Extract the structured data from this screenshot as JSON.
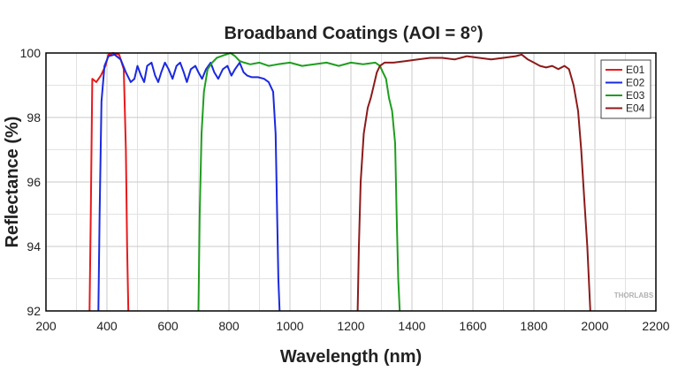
{
  "chart_data": {
    "type": "line",
    "title": "Broadband Coatings (AOI = 8°)",
    "xlabel": "Wavelength (nm)",
    "ylabel": "Reflectance (%)",
    "xlim": [
      200,
      2200
    ],
    "ylim": [
      92,
      100
    ],
    "xticks": [
      200,
      400,
      600,
      800,
      1000,
      1200,
      1400,
      1600,
      1800,
      2000,
      2200
    ],
    "yticks": [
      92,
      94,
      96,
      98,
      100
    ],
    "grid": true,
    "legend_position": "top-right",
    "watermark": "THORLABS",
    "series": [
      {
        "name": "E01",
        "color": "#e8191b",
        "points": [
          [
            343,
            92
          ],
          [
            347,
            95
          ],
          [
            352,
            99.2
          ],
          [
            365,
            99.1
          ],
          [
            380,
            99.3
          ],
          [
            395,
            99.6
          ],
          [
            405,
            99.95
          ],
          [
            420,
            100
          ],
          [
            440,
            99.95
          ],
          [
            455,
            99.5
          ],
          [
            462,
            97
          ],
          [
            466,
            94
          ],
          [
            470,
            92
          ]
        ]
      },
      {
        "name": "E02",
        "color": "#1a29e0",
        "points": [
          [
            372,
            92
          ],
          [
            376,
            95
          ],
          [
            382,
            98.5
          ],
          [
            392,
            99.6
          ],
          [
            405,
            99.9
          ],
          [
            425,
            99.95
          ],
          [
            445,
            99.8
          ],
          [
            462,
            99.4
          ],
          [
            478,
            99.1
          ],
          [
            490,
            99.2
          ],
          [
            500,
            99.6
          ],
          [
            512,
            99.3
          ],
          [
            522,
            99.1
          ],
          [
            532,
            99.6
          ],
          [
            546,
            99.7
          ],
          [
            558,
            99.3
          ],
          [
            568,
            99.1
          ],
          [
            578,
            99.4
          ],
          [
            590,
            99.7
          ],
          [
            602,
            99.5
          ],
          [
            615,
            99.2
          ],
          [
            628,
            99.6
          ],
          [
            640,
            99.7
          ],
          [
            652,
            99.4
          ],
          [
            662,
            99.1
          ],
          [
            675,
            99.5
          ],
          [
            690,
            99.6
          ],
          [
            700,
            99.4
          ],
          [
            712,
            99.2
          ],
          [
            725,
            99.5
          ],
          [
            740,
            99.7
          ],
          [
            752,
            99.4
          ],
          [
            765,
            99.2
          ],
          [
            780,
            99.5
          ],
          [
            795,
            99.6
          ],
          [
            808,
            99.3
          ],
          [
            820,
            99.5
          ],
          [
            835,
            99.7
          ],
          [
            848,
            99.4
          ],
          [
            860,
            99.3
          ],
          [
            875,
            99.25
          ],
          [
            895,
            99.25
          ],
          [
            915,
            99.2
          ],
          [
            930,
            99.1
          ],
          [
            945,
            98.8
          ],
          [
            953,
            97.5
          ],
          [
            958,
            95
          ],
          [
            962,
            93
          ],
          [
            966,
            92
          ]
        ]
      },
      {
        "name": "E03",
        "color": "#1e9e1e",
        "points": [
          [
            700,
            92
          ],
          [
            704,
            95
          ],
          [
            710,
            97.5
          ],
          [
            718,
            98.8
          ],
          [
            730,
            99.5
          ],
          [
            745,
            99.7
          ],
          [
            760,
            99.85
          ],
          [
            775,
            99.9
          ],
          [
            790,
            99.95
          ],
          [
            805,
            100
          ],
          [
            820,
            99.9
          ],
          [
            835,
            99.75
          ],
          [
            850,
            99.7
          ],
          [
            870,
            99.65
          ],
          [
            900,
            99.7
          ],
          [
            930,
            99.6
          ],
          [
            960,
            99.65
          ],
          [
            1000,
            99.7
          ],
          [
            1040,
            99.6
          ],
          [
            1080,
            99.65
          ],
          [
            1120,
            99.7
          ],
          [
            1160,
            99.6
          ],
          [
            1200,
            99.7
          ],
          [
            1240,
            99.65
          ],
          [
            1280,
            99.7
          ],
          [
            1295,
            99.6
          ],
          [
            1305,
            99.4
          ],
          [
            1315,
            99.2
          ],
          [
            1325,
            98.6
          ],
          [
            1335,
            98.2
          ],
          [
            1345,
            97.2
          ],
          [
            1350,
            95
          ],
          [
            1355,
            93
          ],
          [
            1360,
            92
          ]
        ]
      },
      {
        "name": "E04",
        "color": "#8c1a1a",
        "points": [
          [
            1222,
            92
          ],
          [
            1226,
            94
          ],
          [
            1232,
            96
          ],
          [
            1242,
            97.5
          ],
          [
            1255,
            98.3
          ],
          [
            1265,
            98.6
          ],
          [
            1275,
            99.0
          ],
          [
            1285,
            99.4
          ],
          [
            1295,
            99.6
          ],
          [
            1310,
            99.7
          ],
          [
            1340,
            99.7
          ],
          [
            1380,
            99.75
          ],
          [
            1420,
            99.8
          ],
          [
            1460,
            99.85
          ],
          [
            1500,
            99.85
          ],
          [
            1540,
            99.8
          ],
          [
            1580,
            99.9
          ],
          [
            1620,
            99.85
          ],
          [
            1660,
            99.8
          ],
          [
            1700,
            99.85
          ],
          [
            1740,
            99.9
          ],
          [
            1760,
            99.95
          ],
          [
            1780,
            99.8
          ],
          [
            1800,
            99.7
          ],
          [
            1820,
            99.6
          ],
          [
            1840,
            99.55
          ],
          [
            1860,
            99.6
          ],
          [
            1880,
            99.5
          ],
          [
            1900,
            99.6
          ],
          [
            1915,
            99.5
          ],
          [
            1930,
            99.0
          ],
          [
            1945,
            98.2
          ],
          [
            1955,
            97.0
          ],
          [
            1965,
            95.5
          ],
          [
            1975,
            94
          ],
          [
            1985,
            92
          ]
        ]
      }
    ]
  }
}
